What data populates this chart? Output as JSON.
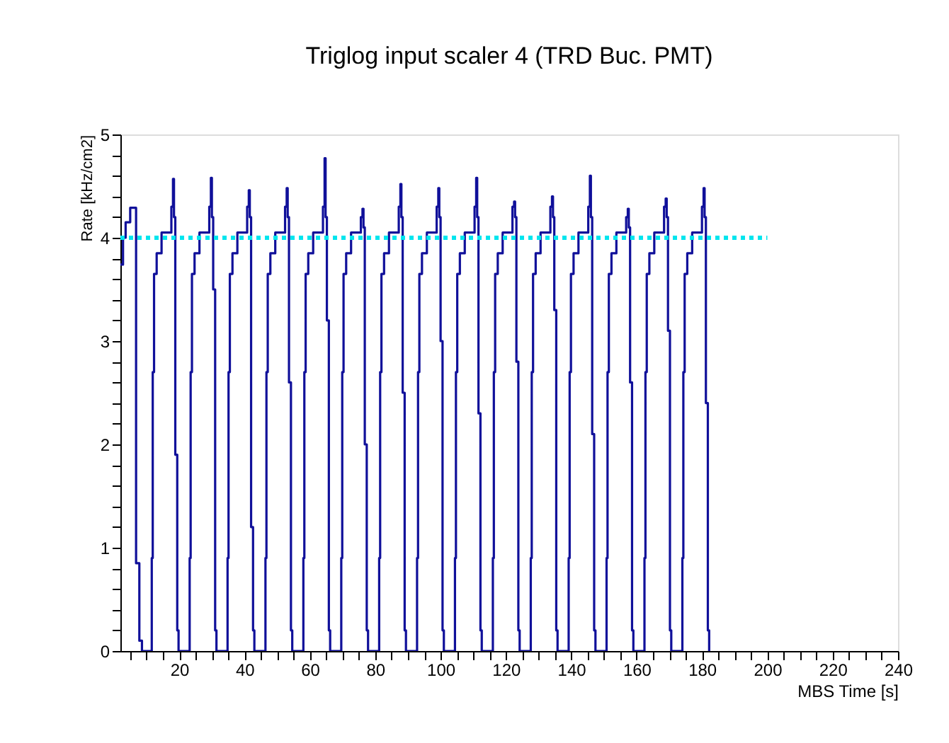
{
  "chart_data": {
    "type": "step",
    "title": "Triglog input scaler 4 (TRD Buc. PMT)",
    "xlabel": "MBS Time [s]",
    "ylabel": "Rate [kHz/cm2]",
    "xlim": [
      2,
      240
    ],
    "ylim": [
      0,
      5
    ],
    "xticks": [
      {
        "value": 5,
        "label": null
      },
      {
        "value": 10,
        "label": null
      },
      {
        "value": 15,
        "label": null
      },
      20,
      {
        "value": 25,
        "label": null
      },
      {
        "value": 30,
        "label": null
      },
      {
        "value": 35,
        "label": null
      },
      40,
      {
        "value": 45,
        "label": null
      },
      {
        "value": 50,
        "label": null
      },
      {
        "value": 55,
        "label": null
      },
      60,
      {
        "value": 65,
        "label": null
      },
      {
        "value": 70,
        "label": null
      },
      {
        "value": 75,
        "label": null
      },
      80,
      {
        "value": 85,
        "label": null
      },
      {
        "value": 90,
        "label": null
      },
      {
        "value": 95,
        "label": null
      },
      100,
      {
        "value": 105,
        "label": null
      },
      {
        "value": 110,
        "label": null
      },
      {
        "value": 115,
        "label": null
      },
      120,
      {
        "value": 125,
        "label": null
      },
      {
        "value": 130,
        "label": null
      },
      {
        "value": 135,
        "label": null
      },
      140,
      {
        "value": 145,
        "label": null
      },
      {
        "value": 150,
        "label": null
      },
      {
        "value": 155,
        "label": null
      },
      160,
      {
        "value": 165,
        "label": null
      },
      {
        "value": 170,
        "label": null
      },
      {
        "value": 175,
        "label": null
      },
      180,
      {
        "value": 185,
        "label": null
      },
      {
        "value": 190,
        "label": null
      },
      {
        "value": 195,
        "label": null
      },
      200,
      {
        "value": 205,
        "label": null
      },
      {
        "value": 210,
        "label": null
      },
      {
        "value": 215,
        "label": null
      },
      220,
      {
        "value": 225,
        "label": null
      },
      {
        "value": 230,
        "label": null
      },
      {
        "value": 235,
        "label": null
      },
      240
    ],
    "yticks": [
      0,
      {
        "value": 0.2,
        "label": null
      },
      {
        "value": 0.4,
        "label": null
      },
      {
        "value": 0.6,
        "label": null
      },
      {
        "value": 0.8,
        "label": null
      },
      1,
      {
        "value": 1.2,
        "label": null
      },
      {
        "value": 1.4,
        "label": null
      },
      {
        "value": 1.6,
        "label": null
      },
      {
        "value": 1.8,
        "label": null
      },
      2,
      {
        "value": 2.2,
        "label": null
      },
      {
        "value": 2.4,
        "label": null
      },
      {
        "value": 2.6,
        "label": null
      },
      {
        "value": 2.8,
        "label": null
      },
      3,
      {
        "value": 3.2,
        "label": null
      },
      {
        "value": 3.4,
        "label": null
      },
      {
        "value": 3.6,
        "label": null
      },
      {
        "value": 3.8,
        "label": null
      },
      4,
      {
        "value": 4.2,
        "label": null
      },
      {
        "value": 4.4,
        "label": null
      },
      {
        "value": 4.6,
        "label": null
      },
      {
        "value": 4.8,
        "label": null
      },
      5
    ],
    "grid": false,
    "series": [
      {
        "color": "#10109a",
        "line_style": "solid",
        "x": [
          2,
          2.8,
          3.6,
          5,
          6.8,
          7.8,
          8.6,
          11.6,
          11.9,
          12.3,
          13.1,
          14.6,
          17.6,
          18.1,
          18.4,
          18.8,
          19.4,
          19.8,
          23.2,
          23.5,
          23.9,
          24.7,
          26.2,
          29.2,
          29.7,
          30.0,
          30.4,
          31.0,
          31.4,
          34.8,
          35.1,
          35.5,
          36.3,
          37.8,
          40.8,
          41.3,
          41.6,
          42.0,
          42.6,
          43.0,
          46.4,
          46.7,
          47.1,
          47.9,
          49.4,
          52.4,
          52.9,
          53.2,
          53.6,
          54.2,
          54.6,
          58.0,
          58.3,
          58.7,
          59.5,
          61.0,
          64.0,
          64.5,
          64.8,
          65.2,
          65.8,
          66.2,
          69.6,
          69.9,
          70.3,
          71.1,
          72.6,
          75.6,
          76.1,
          76.4,
          76.8,
          77.4,
          77.8,
          81.2,
          81.5,
          81.9,
          82.7,
          84.2,
          87.2,
          87.7,
          88.0,
          88.4,
          89.0,
          89.4,
          92.8,
          93.1,
          93.5,
          94.3,
          95.8,
          98.8,
          99.3,
          99.6,
          100.0,
          100.6,
          101.0,
          104.4,
          104.7,
          105.1,
          105.9,
          107.4,
          110.4,
          110.9,
          111.2,
          111.6,
          112.2,
          112.6,
          116.0,
          116.3,
          116.7,
          117.5,
          119.0,
          122.0,
          122.5,
          122.8,
          123.2,
          123.8,
          124.2,
          127.6,
          127.9,
          128.3,
          129.1,
          130.6,
          133.6,
          134.1,
          134.4,
          134.8,
          135.4,
          135.8,
          139.2,
          139.5,
          139.9,
          140.7,
          142.2,
          145.2,
          145.7,
          146.0,
          146.4,
          147.0,
          147.4,
          150.8,
          151.1,
          151.5,
          152.3,
          153.8,
          156.8,
          157.3,
          157.6,
          158.0,
          158.6,
          159.0,
          162.4,
          162.7,
          163.1,
          163.9,
          165.4,
          168.4,
          168.9,
          169.2,
          169.6,
          170.2,
          170.6,
          174.0,
          174.3,
          174.7,
          175.5,
          177.0,
          180.0,
          180.5,
          180.8,
          181.2,
          181.8,
          182.2
        ],
        "values": [
          3.74,
          4.0,
          4.15,
          4.29,
          0.85,
          0.1,
          0,
          0.9,
          2.7,
          3.65,
          3.85,
          4.05,
          4.3,
          4.57,
          4.2,
          1.9,
          0.2,
          0,
          0.9,
          2.7,
          3.65,
          3.85,
          4.05,
          4.3,
          4.58,
          4.2,
          3.5,
          0.2,
          0,
          0.9,
          2.7,
          3.65,
          3.85,
          4.05,
          4.3,
          4.46,
          4.2,
          1.2,
          0.2,
          0,
          0.9,
          2.7,
          3.65,
          3.85,
          4.05,
          4.3,
          4.48,
          4.2,
          2.6,
          0.2,
          0,
          0.9,
          2.7,
          3.65,
          3.85,
          4.05,
          4.3,
          4.77,
          4.2,
          3.2,
          0.2,
          0,
          0.9,
          2.7,
          3.65,
          3.85,
          4.05,
          4.2,
          4.28,
          4.1,
          2.0,
          0.2,
          0,
          0.9,
          2.7,
          3.65,
          3.85,
          4.05,
          4.3,
          4.52,
          4.2,
          2.5,
          0.2,
          0,
          0.9,
          2.7,
          3.65,
          3.85,
          4.05,
          4.3,
          4.48,
          4.2,
          3.0,
          0.2,
          0,
          0.9,
          2.7,
          3.65,
          3.85,
          4.05,
          4.3,
          4.58,
          4.2,
          2.3,
          0.2,
          0,
          0.9,
          2.7,
          3.65,
          3.85,
          4.05,
          4.3,
          4.35,
          4.2,
          2.8,
          0.2,
          0,
          0.9,
          2.7,
          3.65,
          3.85,
          4.05,
          4.3,
          4.4,
          4.2,
          3.3,
          0.2,
          0,
          0.9,
          2.7,
          3.65,
          3.85,
          4.05,
          4.3,
          4.6,
          4.2,
          2.1,
          0.2,
          0,
          0.9,
          2.7,
          3.65,
          3.85,
          4.05,
          4.2,
          4.28,
          4.1,
          2.6,
          0.2,
          0,
          0.9,
          2.7,
          3.65,
          3.85,
          4.05,
          4.3,
          4.38,
          4.2,
          3.1,
          0.2,
          0,
          0.9,
          2.7,
          3.65,
          3.85,
          4.05,
          4.3,
          4.48,
          4.2,
          2.4,
          0.2,
          0
        ]
      },
      {
        "type": "line",
        "color": "#00e5ee",
        "line_style": "dotted",
        "x": [
          2,
          200
        ],
        "values": [
          4,
          4
        ]
      }
    ]
  }
}
